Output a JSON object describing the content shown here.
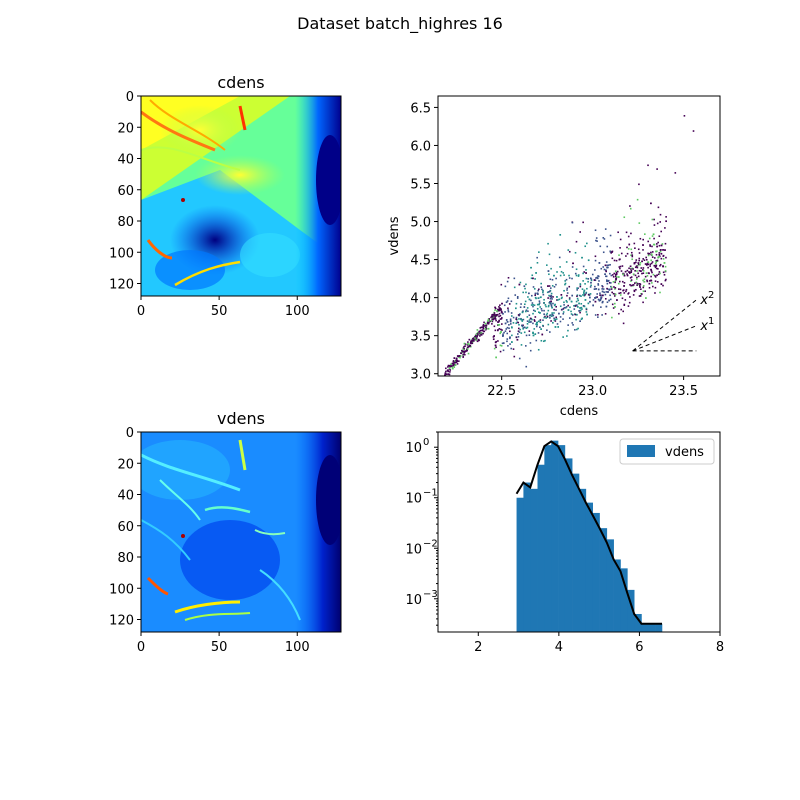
{
  "figure": {
    "title": "Dataset batch_highres 16"
  },
  "chart_data": [
    {
      "type": "heatmap",
      "title": "cdens",
      "colormap": "jet",
      "xticks": [
        "0",
        "50",
        "100"
      ],
      "yticks": [
        "0",
        "20",
        "40",
        "60",
        "80",
        "100",
        "120"
      ],
      "xlim": [
        0,
        128
      ],
      "ylim": [
        128,
        0
      ]
    },
    {
      "type": "scatter",
      "title": "",
      "xlabel": "cdens",
      "ylabel": "vdens",
      "xlim": [
        22.15,
        23.7
      ],
      "ylim": [
        2.97,
        6.65
      ],
      "xticks": [
        "22.5",
        "23.0",
        "23.5"
      ],
      "yticks": [
        "3.0",
        "3.5",
        "4.0",
        "4.5",
        "5.0",
        "5.5",
        "6.0",
        "6.5"
      ],
      "density_colormap": "viridis",
      "slope_lines": [
        {
          "label": "x",
          "exp": "2",
          "x": [
            23.22,
            23.57
          ],
          "y": [
            3.3,
            3.97
          ]
        },
        {
          "label": "x",
          "exp": "1",
          "x": [
            23.22,
            23.57
          ],
          "y": [
            3.3,
            3.63
          ]
        },
        {
          "label": "",
          "exp": "",
          "x": [
            23.22,
            23.57
          ],
          "y": [
            3.3,
            3.3
          ]
        }
      ]
    },
    {
      "type": "heatmap",
      "title": "vdens",
      "colormap": "jet",
      "xticks": [
        "0",
        "50",
        "100"
      ],
      "yticks": [
        "0",
        "20",
        "40",
        "60",
        "80",
        "100",
        "120"
      ],
      "xlim": [
        0,
        128
      ],
      "ylim": [
        128,
        0
      ]
    },
    {
      "type": "bar",
      "title": "",
      "yscale": "log",
      "xlim": [
        1,
        8
      ],
      "ylim": [
        0.00022,
        2.0
      ],
      "xticks": [
        "2",
        "4",
        "6",
        "8"
      ],
      "yticks": [
        {
          "base": "10",
          "exp": "0"
        },
        {
          "base": "10",
          "exp": "−1"
        },
        {
          "base": "10",
          "exp": "−2"
        },
        {
          "base": "10",
          "exp": "−3"
        }
      ],
      "legend": {
        "position": "upper-right",
        "entries": [
          "vdens"
        ]
      },
      "bin_edges": [
        2.95,
        3.12,
        3.29,
        3.47,
        3.64,
        3.81,
        3.98,
        4.15,
        4.33,
        4.5,
        4.67,
        4.84,
        5.01,
        5.19,
        5.36,
        5.53,
        5.7,
        5.87,
        6.05,
        6.22,
        6.39,
        6.56
      ],
      "values": [
        0.1,
        0.2,
        0.15,
        0.45,
        1.1,
        1.35,
        1.1,
        0.6,
        0.3,
        0.15,
        0.08,
        0.05,
        0.025,
        0.015,
        0.006,
        0.004,
        0.0015,
        0.0005,
        0.00032,
        0.00032,
        0.00032
      ],
      "kde_line": {
        "x": [
          2.95,
          3.12,
          3.29,
          3.47,
          3.64,
          3.81,
          3.98,
          4.15,
          4.33,
          4.5,
          4.67,
          4.84,
          5.01,
          5.19,
          5.36,
          5.53,
          5.7,
          5.87,
          6.05,
          6.22,
          6.39,
          6.56
        ],
        "y": [
          0.12,
          0.2,
          0.16,
          0.45,
          1.05,
          1.3,
          1.05,
          0.58,
          0.28,
          0.15,
          0.08,
          0.045,
          0.025,
          0.013,
          0.006,
          0.0035,
          0.0013,
          0.0005,
          0.00032,
          0.00032,
          0.00032,
          0.00032
        ]
      }
    }
  ]
}
